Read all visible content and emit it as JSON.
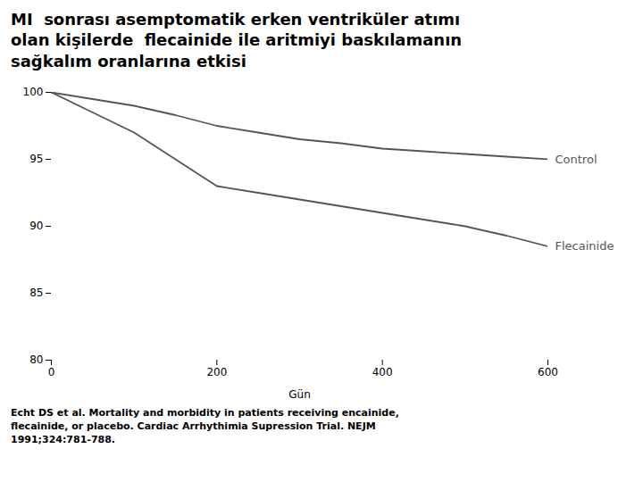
{
  "chart_data": {
    "type": "line",
    "title": "MI  sonrası asemptomatik erken ventriküler atımı\nolan kişilerde  flecainide ile aritmiyi baskılamanın\nsağkalım oranlarına etkisi",
    "caption": "Echt DS et al. Mortality and morbidity in patients receiving encainide,\nflecainide, or placebo. Cardiac Arrhythimia Supression Trial. NEJM\n1991;324:781-788.",
    "xlabel": "Gün",
    "x": [
      0,
      50,
      100,
      150,
      200,
      250,
      300,
      350,
      400,
      450,
      500,
      550,
      600
    ],
    "series": [
      {
        "name": "Control",
        "color": "#555555",
        "values": [
          100,
          99.5,
          99.0,
          98.3,
          97.5,
          97.0,
          96.5,
          96.2,
          95.8,
          95.6,
          95.4,
          95.2,
          95.0
        ]
      },
      {
        "name": "Flecainide",
        "color": "#555555",
        "values": [
          100,
          98.5,
          97.0,
          95.0,
          93.0,
          92.5,
          92.0,
          91.5,
          91.0,
          90.5,
          90.0,
          89.3,
          88.5
        ]
      }
    ],
    "xlim": [
      0,
      600
    ],
    "ylim": [
      80,
      100
    ],
    "xticks": [
      0,
      200,
      400,
      600
    ],
    "yticks": [
      80,
      85,
      90,
      95,
      100
    ],
    "grid": false
  }
}
